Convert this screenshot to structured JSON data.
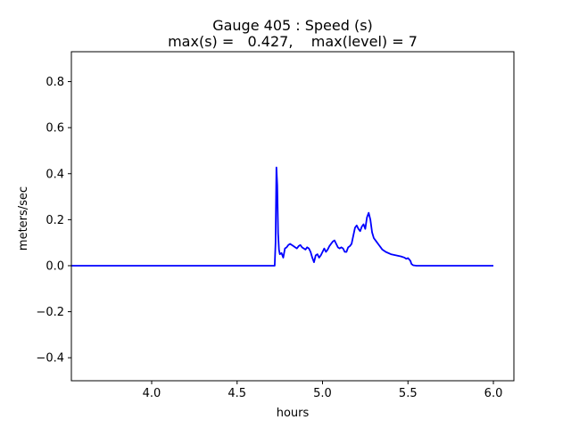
{
  "chart_data": {
    "type": "line",
    "title": "Gauge 405 : Speed (s)",
    "subtitle": "max(s) =   0.427,    max(level) = 7",
    "xlabel": "hours",
    "ylabel": "meters/sec",
    "xlim": [
      3.53,
      6.12
    ],
    "ylim": [
      -0.5,
      0.93
    ],
    "xticks": [
      "4.0",
      "4.5",
      "5.0",
      "5.5",
      "6.0"
    ],
    "yticks": [
      "−0.4",
      "−0.2",
      "0.0",
      "0.2",
      "0.4",
      "0.6",
      "0.8"
    ],
    "xtick_values": [
      4.0,
      4.5,
      5.0,
      5.5,
      6.0
    ],
    "ytick_values": [
      -0.4,
      -0.2,
      0.0,
      0.2,
      0.4,
      0.6,
      0.8
    ],
    "grid": false,
    "series": [
      {
        "color": "#0000ff",
        "x": [
          3.53,
          4.72,
          4.725,
          4.73,
          4.735,
          4.74,
          4.745,
          4.75,
          4.76,
          4.77,
          4.78,
          4.79,
          4.8,
          4.81,
          4.82,
          4.83,
          4.84,
          4.85,
          4.86,
          4.87,
          4.88,
          4.89,
          4.9,
          4.91,
          4.92,
          4.93,
          4.94,
          4.95,
          4.96,
          4.97,
          4.98,
          4.99,
          5.0,
          5.01,
          5.02,
          5.03,
          5.04,
          5.05,
          5.06,
          5.07,
          5.08,
          5.09,
          5.1,
          5.11,
          5.12,
          5.13,
          5.14,
          5.15,
          5.16,
          5.17,
          5.18,
          5.19,
          5.2,
          5.21,
          5.22,
          5.23,
          5.24,
          5.25,
          5.26,
          5.27,
          5.28,
          5.29,
          5.3,
          5.31,
          5.32,
          5.33,
          5.34,
          5.35,
          5.37,
          5.4,
          5.43,
          5.46,
          5.48,
          5.49,
          5.5,
          5.51,
          5.515,
          5.52,
          5.53,
          5.55,
          6.0
        ],
        "values": [
          0.0,
          0.0,
          0.1,
          0.427,
          0.35,
          0.14,
          0.07,
          0.05,
          0.055,
          0.035,
          0.075,
          0.08,
          0.09,
          0.095,
          0.09,
          0.085,
          0.08,
          0.075,
          0.085,
          0.09,
          0.08,
          0.075,
          0.07,
          0.08,
          0.075,
          0.06,
          0.035,
          0.015,
          0.045,
          0.05,
          0.035,
          0.045,
          0.06,
          0.075,
          0.06,
          0.07,
          0.085,
          0.095,
          0.105,
          0.11,
          0.095,
          0.08,
          0.075,
          0.08,
          0.075,
          0.06,
          0.06,
          0.08,
          0.085,
          0.095,
          0.13,
          0.165,
          0.175,
          0.16,
          0.15,
          0.17,
          0.18,
          0.16,
          0.21,
          0.23,
          0.2,
          0.145,
          0.12,
          0.11,
          0.1,
          0.09,
          0.08,
          0.07,
          0.06,
          0.05,
          0.045,
          0.04,
          0.035,
          0.03,
          0.033,
          0.025,
          0.02,
          0.008,
          0.002,
          0.0,
          0.0
        ]
      }
    ]
  }
}
